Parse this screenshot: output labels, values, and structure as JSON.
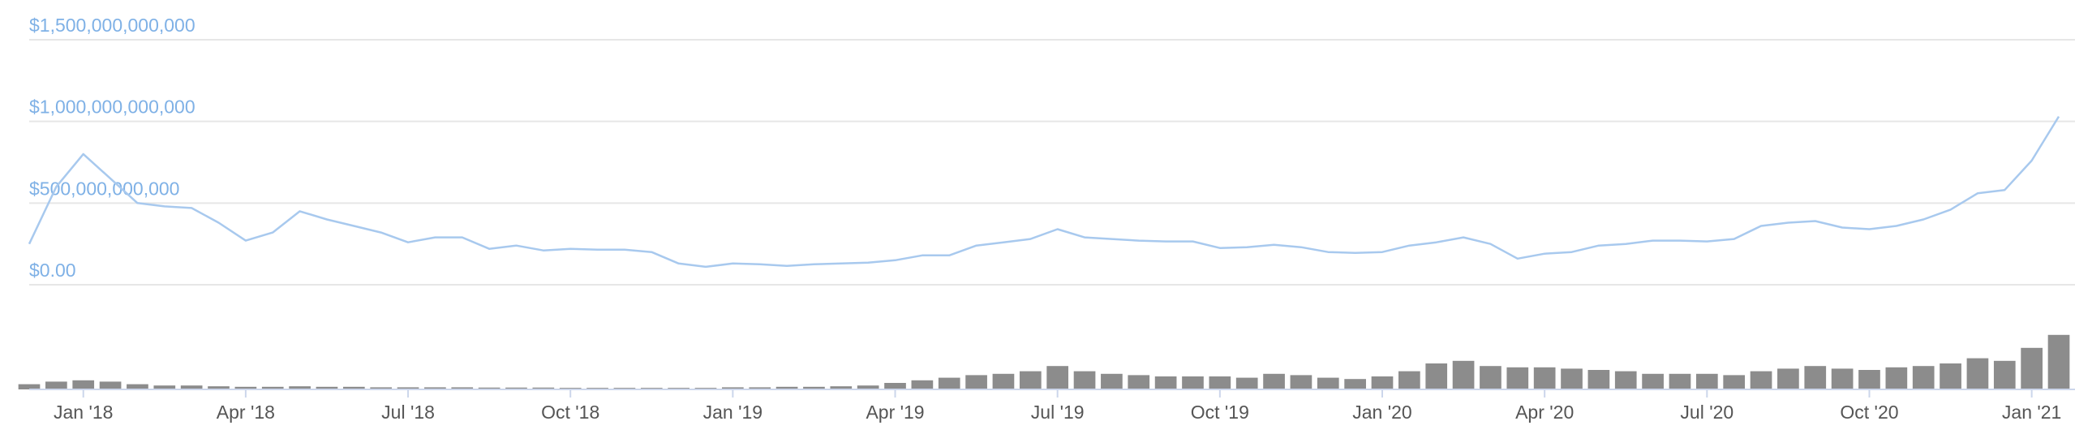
{
  "chart_data": {
    "type": "line",
    "color": "#a8c9ee",
    "categories": [
      null,
      null,
      "Jan '18",
      null,
      null,
      null,
      null,
      null,
      "Apr '18",
      null,
      null,
      null,
      null,
      null,
      "Jul '18",
      null,
      null,
      null,
      null,
      null,
      "Oct '18",
      null,
      null,
      null,
      null,
      null,
      "Jan '19",
      null,
      null,
      null,
      null,
      null,
      "Apr '19",
      null,
      null,
      null,
      null,
      null,
      "Jul '19",
      null,
      null,
      null,
      null,
      null,
      "Oct '19",
      null,
      null,
      null,
      null,
      null,
      "Jan '20",
      null,
      null,
      null,
      null,
      null,
      "Apr '20",
      null,
      null,
      null,
      null,
      null,
      "Jul '20",
      null,
      null,
      null,
      null,
      null,
      "Oct '20",
      null,
      null,
      null,
      null,
      null,
      "Jan '21",
      null
    ],
    "values": [
      250000000000,
      600000000000,
      800000000000,
      650000000000,
      500000000000,
      480000000000,
      470000000000,
      380000000000,
      270000000000,
      320000000000,
      450000000000,
      400000000000,
      360000000000,
      320000000000,
      260000000000,
      290000000000,
      290000000000,
      220000000000,
      240000000000,
      210000000000,
      220000000000,
      215000000000,
      215000000000,
      200000000000,
      130000000000,
      110000000000,
      130000000000,
      125000000000,
      115000000000,
      125000000000,
      130000000000,
      135000000000,
      150000000000,
      180000000000,
      180000000000,
      240000000000,
      260000000000,
      280000000000,
      340000000000,
      290000000000,
      280000000000,
      270000000000,
      265000000000,
      265000000000,
      225000000000,
      230000000000,
      245000000000,
      230000000000,
      200000000000,
      195000000000,
      200000000000,
      240000000000,
      260000000000,
      290000000000,
      250000000000,
      160000000000,
      190000000000,
      200000000000,
      240000000000,
      250000000000,
      270000000000,
      270000000000,
      265000000000,
      280000000000,
      360000000000,
      380000000000,
      390000000000,
      350000000000,
      340000000000,
      360000000000,
      400000000000,
      460000000000,
      560000000000,
      580000000000,
      760000000000,
      1030000000000
    ],
    "ylim": [
      0,
      1500000000000
    ],
    "yticks": [
      {
        "value": 0,
        "label": "$0.00"
      },
      {
        "value": 500000000000,
        "label": "$500,000,000,000"
      },
      {
        "value": 1000000000000,
        "label": "$1,000,000,000,000"
      },
      {
        "value": 1500000000000,
        "label": "$1,500,000,000,000"
      }
    ],
    "grid": true,
    "volume": {
      "type": "bar",
      "color": "#8c8c8c",
      "ylim": [
        0,
        250000000000
      ],
      "values": [
        20000000000,
        30000000000,
        35000000000,
        30000000000,
        20000000000,
        15000000000,
        15000000000,
        12000000000,
        10000000000,
        10000000000,
        12000000000,
        10000000000,
        10000000000,
        8000000000,
        8000000000,
        8000000000,
        8000000000,
        7000000000,
        7000000000,
        7000000000,
        6000000000,
        6000000000,
        6000000000,
        6000000000,
        6000000000,
        6000000000,
        8000000000,
        8000000000,
        10000000000,
        10000000000,
        12000000000,
        15000000000,
        25000000000,
        35000000000,
        45000000000,
        55000000000,
        60000000000,
        70000000000,
        90000000000,
        70000000000,
        60000000000,
        55000000000,
        50000000000,
        50000000000,
        50000000000,
        45000000000,
        60000000000,
        55000000000,
        45000000000,
        40000000000,
        50000000000,
        70000000000,
        100000000000,
        110000000000,
        90000000000,
        85000000000,
        85000000000,
        80000000000,
        75000000000,
        70000000000,
        60000000000,
        60000000000,
        60000000000,
        55000000000,
        70000000000,
        80000000000,
        90000000000,
        80000000000,
        75000000000,
        85000000000,
        90000000000,
        100000000000,
        120000000000,
        110000000000,
        160000000000,
        210000000000
      ]
    }
  }
}
